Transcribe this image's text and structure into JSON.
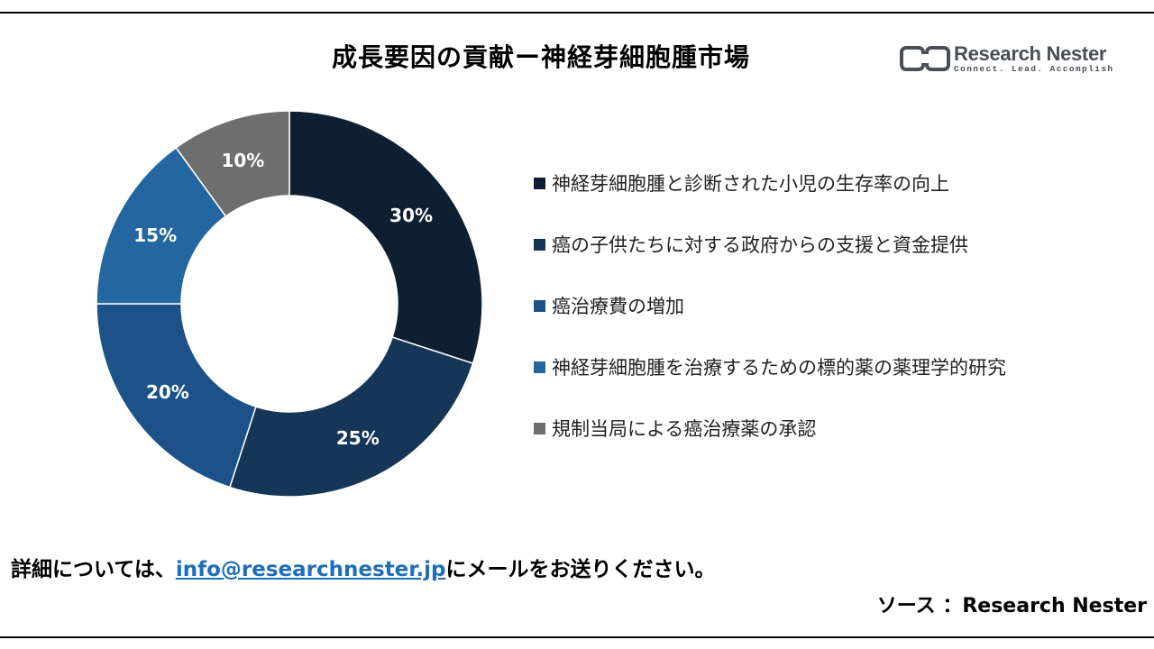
{
  "title": "成長要因の貢献ー神経芽細胞腫市場",
  "logo": {
    "name": "Research Nester",
    "tagline": "Connect. Lead. Accomplish"
  },
  "chart_data": {
    "type": "pie",
    "categories": [
      "神経芽細胞腫と診断された小児の生存率の向上",
      "癌の子供たちに対する政府からの支援と資金提供",
      "癌治療費の増加",
      "神経芽細胞腫を治療するための標的薬の薬理学的研究",
      "規制当局による癌治療薬の承認"
    ],
    "values": [
      30,
      25,
      20,
      15,
      10
    ],
    "labels": [
      "30%",
      "25%",
      "20%",
      "15%",
      "10%"
    ],
    "colors": [
      "#0d1f30",
      "#163657",
      "#1d5289",
      "#2366a0",
      "#6e6e6e"
    ],
    "legend_position": "right"
  },
  "footer": {
    "prefix": "詳細については、",
    "email": "info@researchnester.jp",
    "suffix": "にメールをお送りください。"
  },
  "source": "ソース ：Research Nester"
}
